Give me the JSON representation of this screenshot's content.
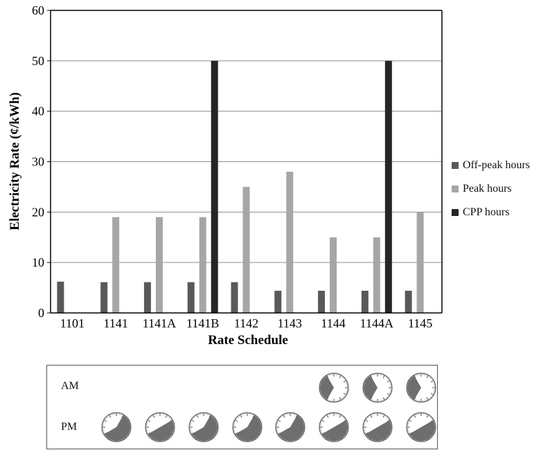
{
  "chart_data": {
    "type": "bar",
    "title": "",
    "xlabel": "Rate Schedule",
    "ylabel": "Electricity Rate (¢/kWh)",
    "ylim": [
      0,
      60
    ],
    "yticks": [
      0,
      10,
      20,
      30,
      40,
      50,
      60
    ],
    "grid": true,
    "legend_position": "right",
    "categories": [
      "1101",
      "1141",
      "1141A",
      "1141B",
      "1142",
      "1143",
      "1144",
      "1144A",
      "1145"
    ],
    "series": [
      {
        "name": "Off-peak hours",
        "color": "#595959",
        "values": [
          6.2,
          6.1,
          6.1,
          6.1,
          6.1,
          4.4,
          4.4,
          4.4,
          4.4
        ]
      },
      {
        "name": "Peak hours",
        "color": "#a6a6a6",
        "values": [
          null,
          19,
          19,
          19,
          25,
          28,
          15,
          15,
          20
        ]
      },
      {
        "name": "CPP hours",
        "color": "#262626",
        "values": [
          null,
          null,
          null,
          50,
          null,
          null,
          null,
          50,
          null
        ]
      }
    ]
  },
  "clock_panel": {
    "am_label": "AM",
    "pm_label": "PM",
    "am_clocks": [
      {
        "category": "1144",
        "shaded_hours": [
          7,
          11
        ]
      },
      {
        "category": "1144A",
        "shaded_hours": [
          7,
          11
        ]
      },
      {
        "category": "1145",
        "shaded_hours": [
          7,
          11
        ]
      }
    ],
    "pm_clocks": [
      {
        "category": "1141",
        "shaded_hours": [
          13,
          20
        ]
      },
      {
        "category": "1141A",
        "shaded_hours": [
          14,
          20
        ]
      },
      {
        "category": "1141B",
        "shaded_hours": [
          13,
          20
        ]
      },
      {
        "category": "1142",
        "shaded_hours": [
          13,
          20
        ]
      },
      {
        "category": "1143",
        "shaded_hours": [
          13,
          20
        ]
      },
      {
        "category": "1144",
        "shaded_hours": [
          14,
          20
        ]
      },
      {
        "category": "1144A",
        "shaded_hours": [
          14,
          20
        ]
      },
      {
        "category": "1145",
        "shaded_hours": [
          14,
          20
        ]
      }
    ]
  },
  "colors": {
    "clock_fill": "#6e6e6e",
    "axis": "#000000",
    "grid": "#8c8c8c"
  }
}
